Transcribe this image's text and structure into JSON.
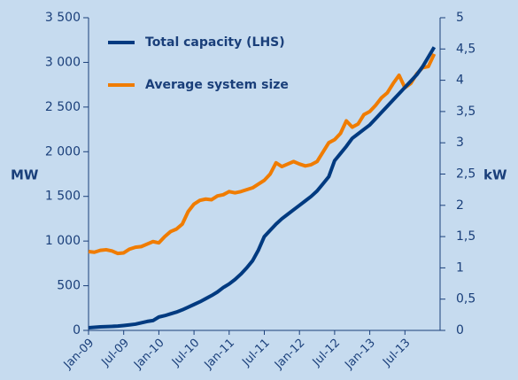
{
  "chart_data": {
    "type": "line",
    "categories": [
      "Jan-09",
      null,
      null,
      null,
      null,
      null,
      "Jul-09",
      null,
      null,
      null,
      null,
      null,
      "Jan-10",
      null,
      null,
      null,
      null,
      null,
      "Jul-10",
      null,
      null,
      null,
      null,
      null,
      "Jan-11",
      null,
      null,
      null,
      null,
      null,
      "Jul-11",
      null,
      null,
      null,
      null,
      null,
      "Jan-12",
      null,
      null,
      null,
      null,
      null,
      "Jul-12",
      null,
      null,
      null,
      null,
      null,
      "Jan-13",
      null,
      null,
      null,
      null,
      null,
      "Jul-13",
      null,
      null,
      null,
      null,
      null
    ],
    "series": [
      {
        "name": "Total capacity (LHS)",
        "color": "#003a80",
        "axis": "y",
        "values": [
          30,
          35,
          40,
          42,
          45,
          48,
          55,
          62,
          70,
          85,
          100,
          110,
          150,
          165,
          185,
          205,
          230,
          260,
          290,
          320,
          355,
          390,
          430,
          480,
          520,
          570,
          630,
          700,
          780,
          900,
          1050,
          1120,
          1190,
          1250,
          1300,
          1350,
          1400,
          1450,
          1500,
          1560,
          1640,
          1720,
          1900,
          1980,
          2060,
          2150,
          2200,
          2250,
          2300,
          2370,
          2440,
          2510,
          2580,
          2650,
          2720,
          2790,
          2860,
          2950,
          3060,
          3170
        ]
      },
      {
        "name": "Average system size",
        "color": "#f07c00",
        "axis": "y2",
        "values": [
          1.26,
          1.25,
          1.28,
          1.29,
          1.27,
          1.23,
          1.24,
          1.3,
          1.33,
          1.34,
          1.38,
          1.42,
          1.4,
          1.5,
          1.58,
          1.62,
          1.7,
          1.9,
          2.02,
          2.08,
          2.1,
          2.09,
          2.15,
          2.17,
          2.22,
          2.2,
          2.22,
          2.25,
          2.28,
          2.34,
          2.4,
          2.5,
          2.68,
          2.62,
          2.66,
          2.7,
          2.66,
          2.63,
          2.65,
          2.7,
          2.85,
          3.0,
          3.05,
          3.15,
          3.35,
          3.25,
          3.3,
          3.45,
          3.5,
          3.6,
          3.72,
          3.8,
          3.95,
          4.08,
          3.88,
          3.95,
          4.1,
          4.2,
          4.22,
          4.42
        ]
      }
    ],
    "y_label": "MW",
    "y2_label": "kW",
    "ylim": [
      0,
      3500
    ],
    "yticks": [
      0,
      500,
      {
        "value": 1000,
        "label": "1 000"
      },
      {
        "value": 1500,
        "label": "1 500"
      },
      {
        "value": 2000,
        "label": "2 000"
      },
      {
        "value": 2500,
        "label": "2 500"
      },
      {
        "value": 3000,
        "label": "3 000"
      },
      {
        "value": 3500,
        "label": "3 500"
      }
    ],
    "y2lim": [
      0,
      5
    ],
    "y2ticks": [
      0,
      {
        "value": 0.5,
        "label": "0,5"
      },
      1,
      {
        "value": 1.5,
        "label": "1,5"
      },
      2,
      {
        "value": 2.5,
        "label": "2,5"
      },
      3,
      {
        "value": 3.5,
        "label": "3,5"
      },
      4,
      {
        "value": 4.5,
        "label": "4,5"
      },
      5
    ],
    "legend": "upper-left",
    "grid": false
  }
}
